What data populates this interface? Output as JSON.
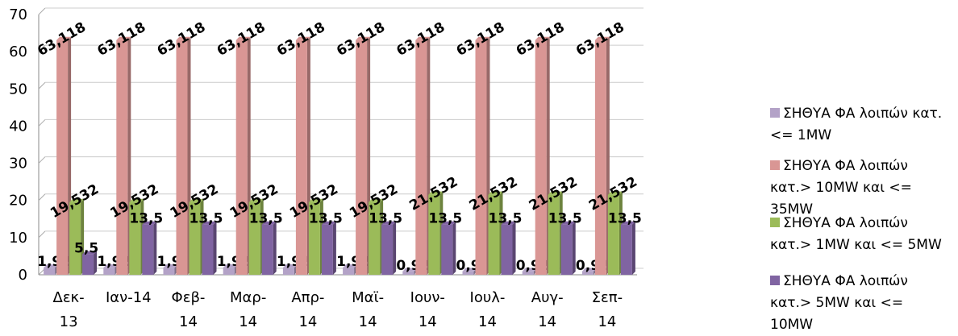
{
  "chart_data": {
    "type": "bar",
    "categories": [
      "Δεκ-13",
      "Ιαν-14",
      "Φεβ-14",
      "Μαρ-14",
      "Απρ-14",
      "Μαϊ-14",
      "Ιουν-14",
      "Ιουλ-14",
      "Αυγ-14",
      "Σεπ-14"
    ],
    "series": [
      {
        "name": "ΣΗΘΥΑ ΦΑ λοιπών κατ.<= 1MW",
        "color": "#b3a2c7",
        "values": [
          1.92,
          1.92,
          1.92,
          1.92,
          1.92,
          1.92,
          0.92,
          0.92,
          0.92,
          0.92
        ],
        "value_labels": [
          "1,92",
          "1,92",
          "1,92",
          "1,92",
          "1,92",
          "1,92",
          "0,92",
          "0,92",
          "0,92",
          "0,92"
        ]
      },
      {
        "name": "ΣΗΘΥΑ ΦΑ λοιπών κατ.> 10MW και <= 35MW",
        "color": "#d99694",
        "values": [
          63.118,
          63.118,
          63.118,
          63.118,
          63.118,
          63.118,
          63.118,
          63.118,
          63.118,
          63.118
        ],
        "value_labels": [
          "63,118",
          "63,118",
          "63,118",
          "63,118",
          "63,118",
          "63,118",
          "63,118",
          "63,118",
          "63,118",
          "63,118"
        ]
      },
      {
        "name": "ΣΗΘΥΑ ΦΑ λοιπών κατ.> 1MW και <= 5MW",
        "color": "#9bbb59",
        "values": [
          19.532,
          19.532,
          19.532,
          19.532,
          19.532,
          19.532,
          21.532,
          21.532,
          21.532,
          21.532
        ],
        "value_labels": [
          "19,532",
          "19,532",
          "19,532",
          "19,532",
          "19,532",
          "19,532",
          "21,532",
          "21,532",
          "21,532",
          "21,532"
        ]
      },
      {
        "name": "ΣΗΘΥΑ ΦΑ λοιπών κατ.> 5MW και <= 10MW",
        "color": "#8064a2",
        "values": [
          5.5,
          13.5,
          13.5,
          13.5,
          13.5,
          13.5,
          13.5,
          13.5,
          13.5,
          13.5
        ],
        "value_labels": [
          "5,5",
          "13,5",
          "13,5",
          "13,5",
          "13,5",
          "13,5",
          "13,5",
          "13,5",
          "13,5",
          "13,5"
        ]
      }
    ],
    "ylim": [
      0,
      70
    ],
    "yticks": [
      0,
      10,
      20,
      30,
      40,
      50,
      60,
      70
    ],
    "grid": true,
    "legend": "right"
  }
}
